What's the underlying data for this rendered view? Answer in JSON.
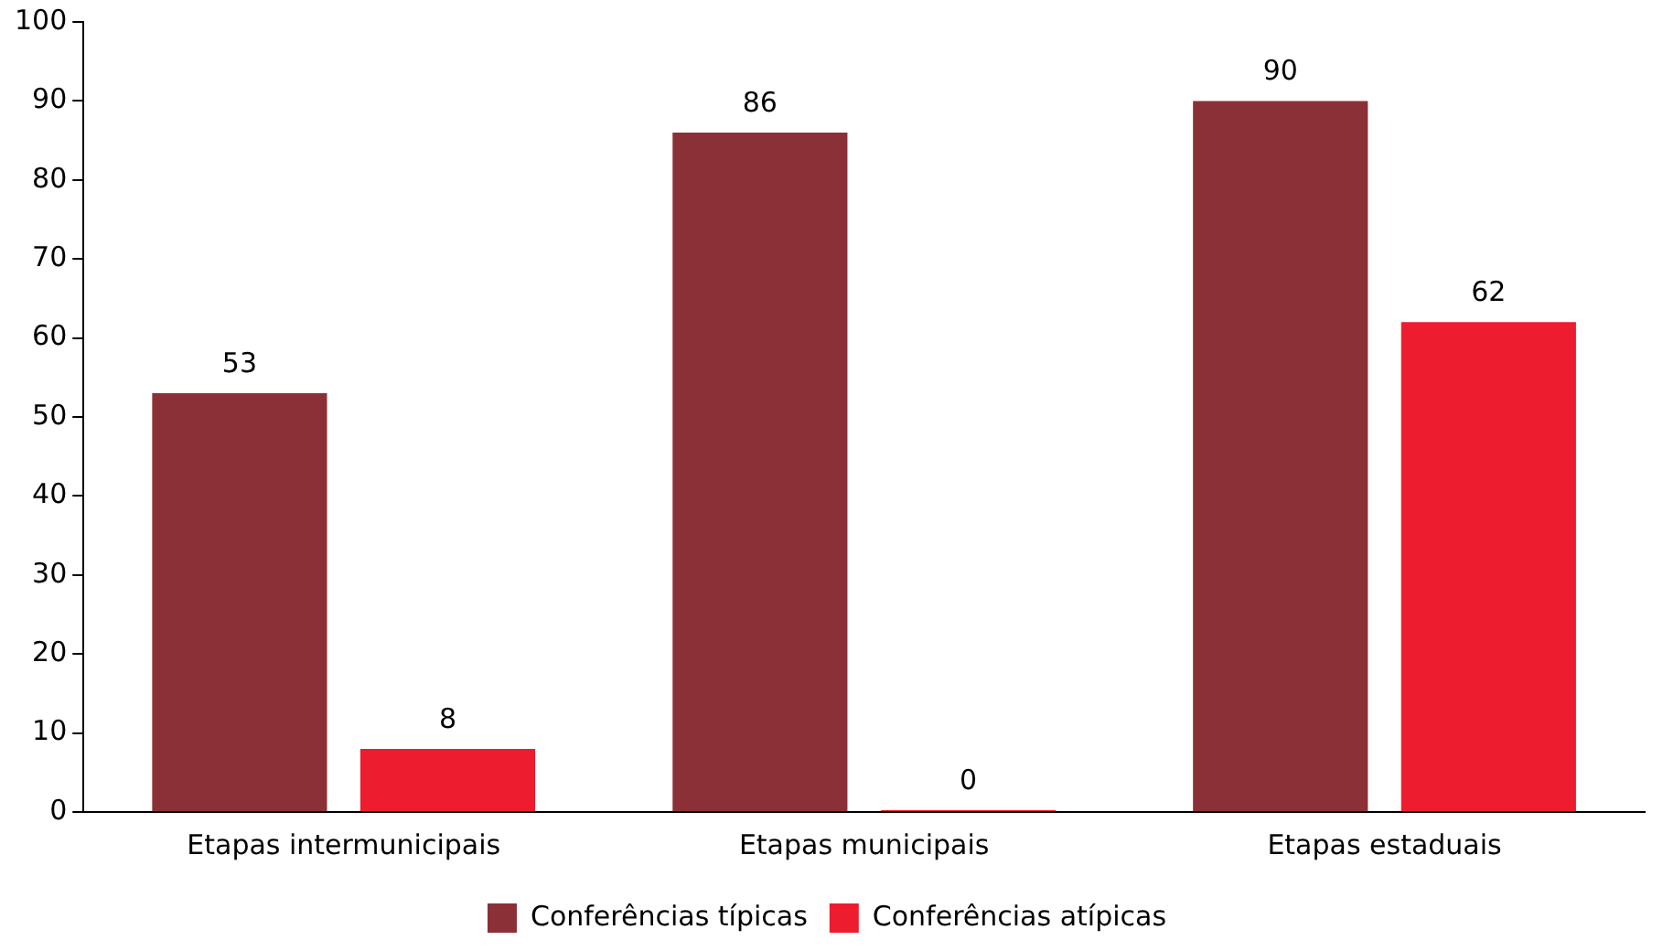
{
  "chart_data": {
    "type": "bar",
    "categories": [
      "Etapas intermunicipais",
      "Etapas municipais",
      "Etapas estaduais"
    ],
    "series": [
      {
        "name": "Conferências típicas",
        "color": "#8b3037",
        "values": [
          53,
          86,
          90
        ]
      },
      {
        "name": "Conferências atípicas",
        "color": "#ed1c2e",
        "values": [
          8,
          0,
          62
        ]
      }
    ],
    "ylim": [
      0,
      100
    ],
    "yticks": [
      0,
      10,
      20,
      30,
      40,
      50,
      60,
      70,
      80,
      90,
      100
    ],
    "grid": false,
    "legend": "bottom",
    "data_labels": true
  }
}
